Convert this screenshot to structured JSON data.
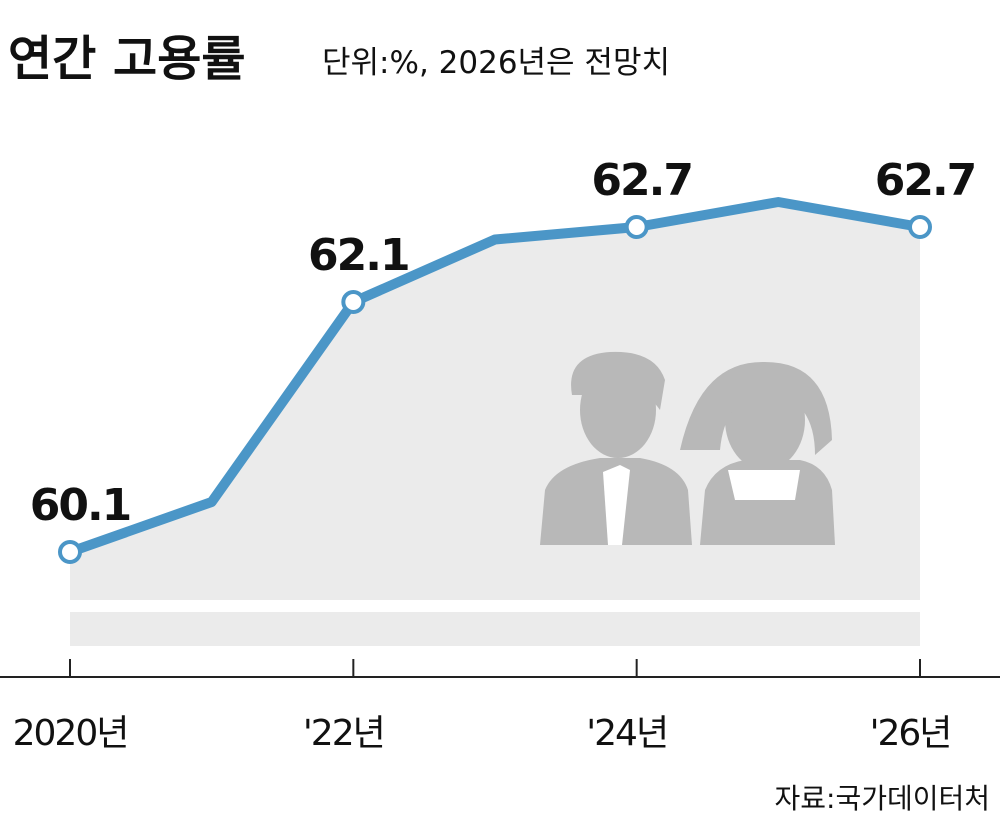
{
  "chart_data": {
    "type": "line",
    "title": "연간 고용률",
    "subtitle": "단위:%, 2026년은 전망치",
    "source": "자료:국가데이터처",
    "categories": [
      "2020년",
      null,
      "'22년",
      null,
      "'24년",
      null,
      "'26년"
    ],
    "series": [
      {
        "name": null,
        "color": "#4b96c7",
        "values": [
          60.1,
          60.5,
          62.1,
          62.6,
          62.7,
          62.9,
          62.7
        ],
        "value_labels": [
          "60.1",
          null,
          "62.1",
          null,
          "62.7",
          null,
          "62.7"
        ]
      }
    ],
    "ylim": [
      59.1,
      63.3
    ]
  }
}
